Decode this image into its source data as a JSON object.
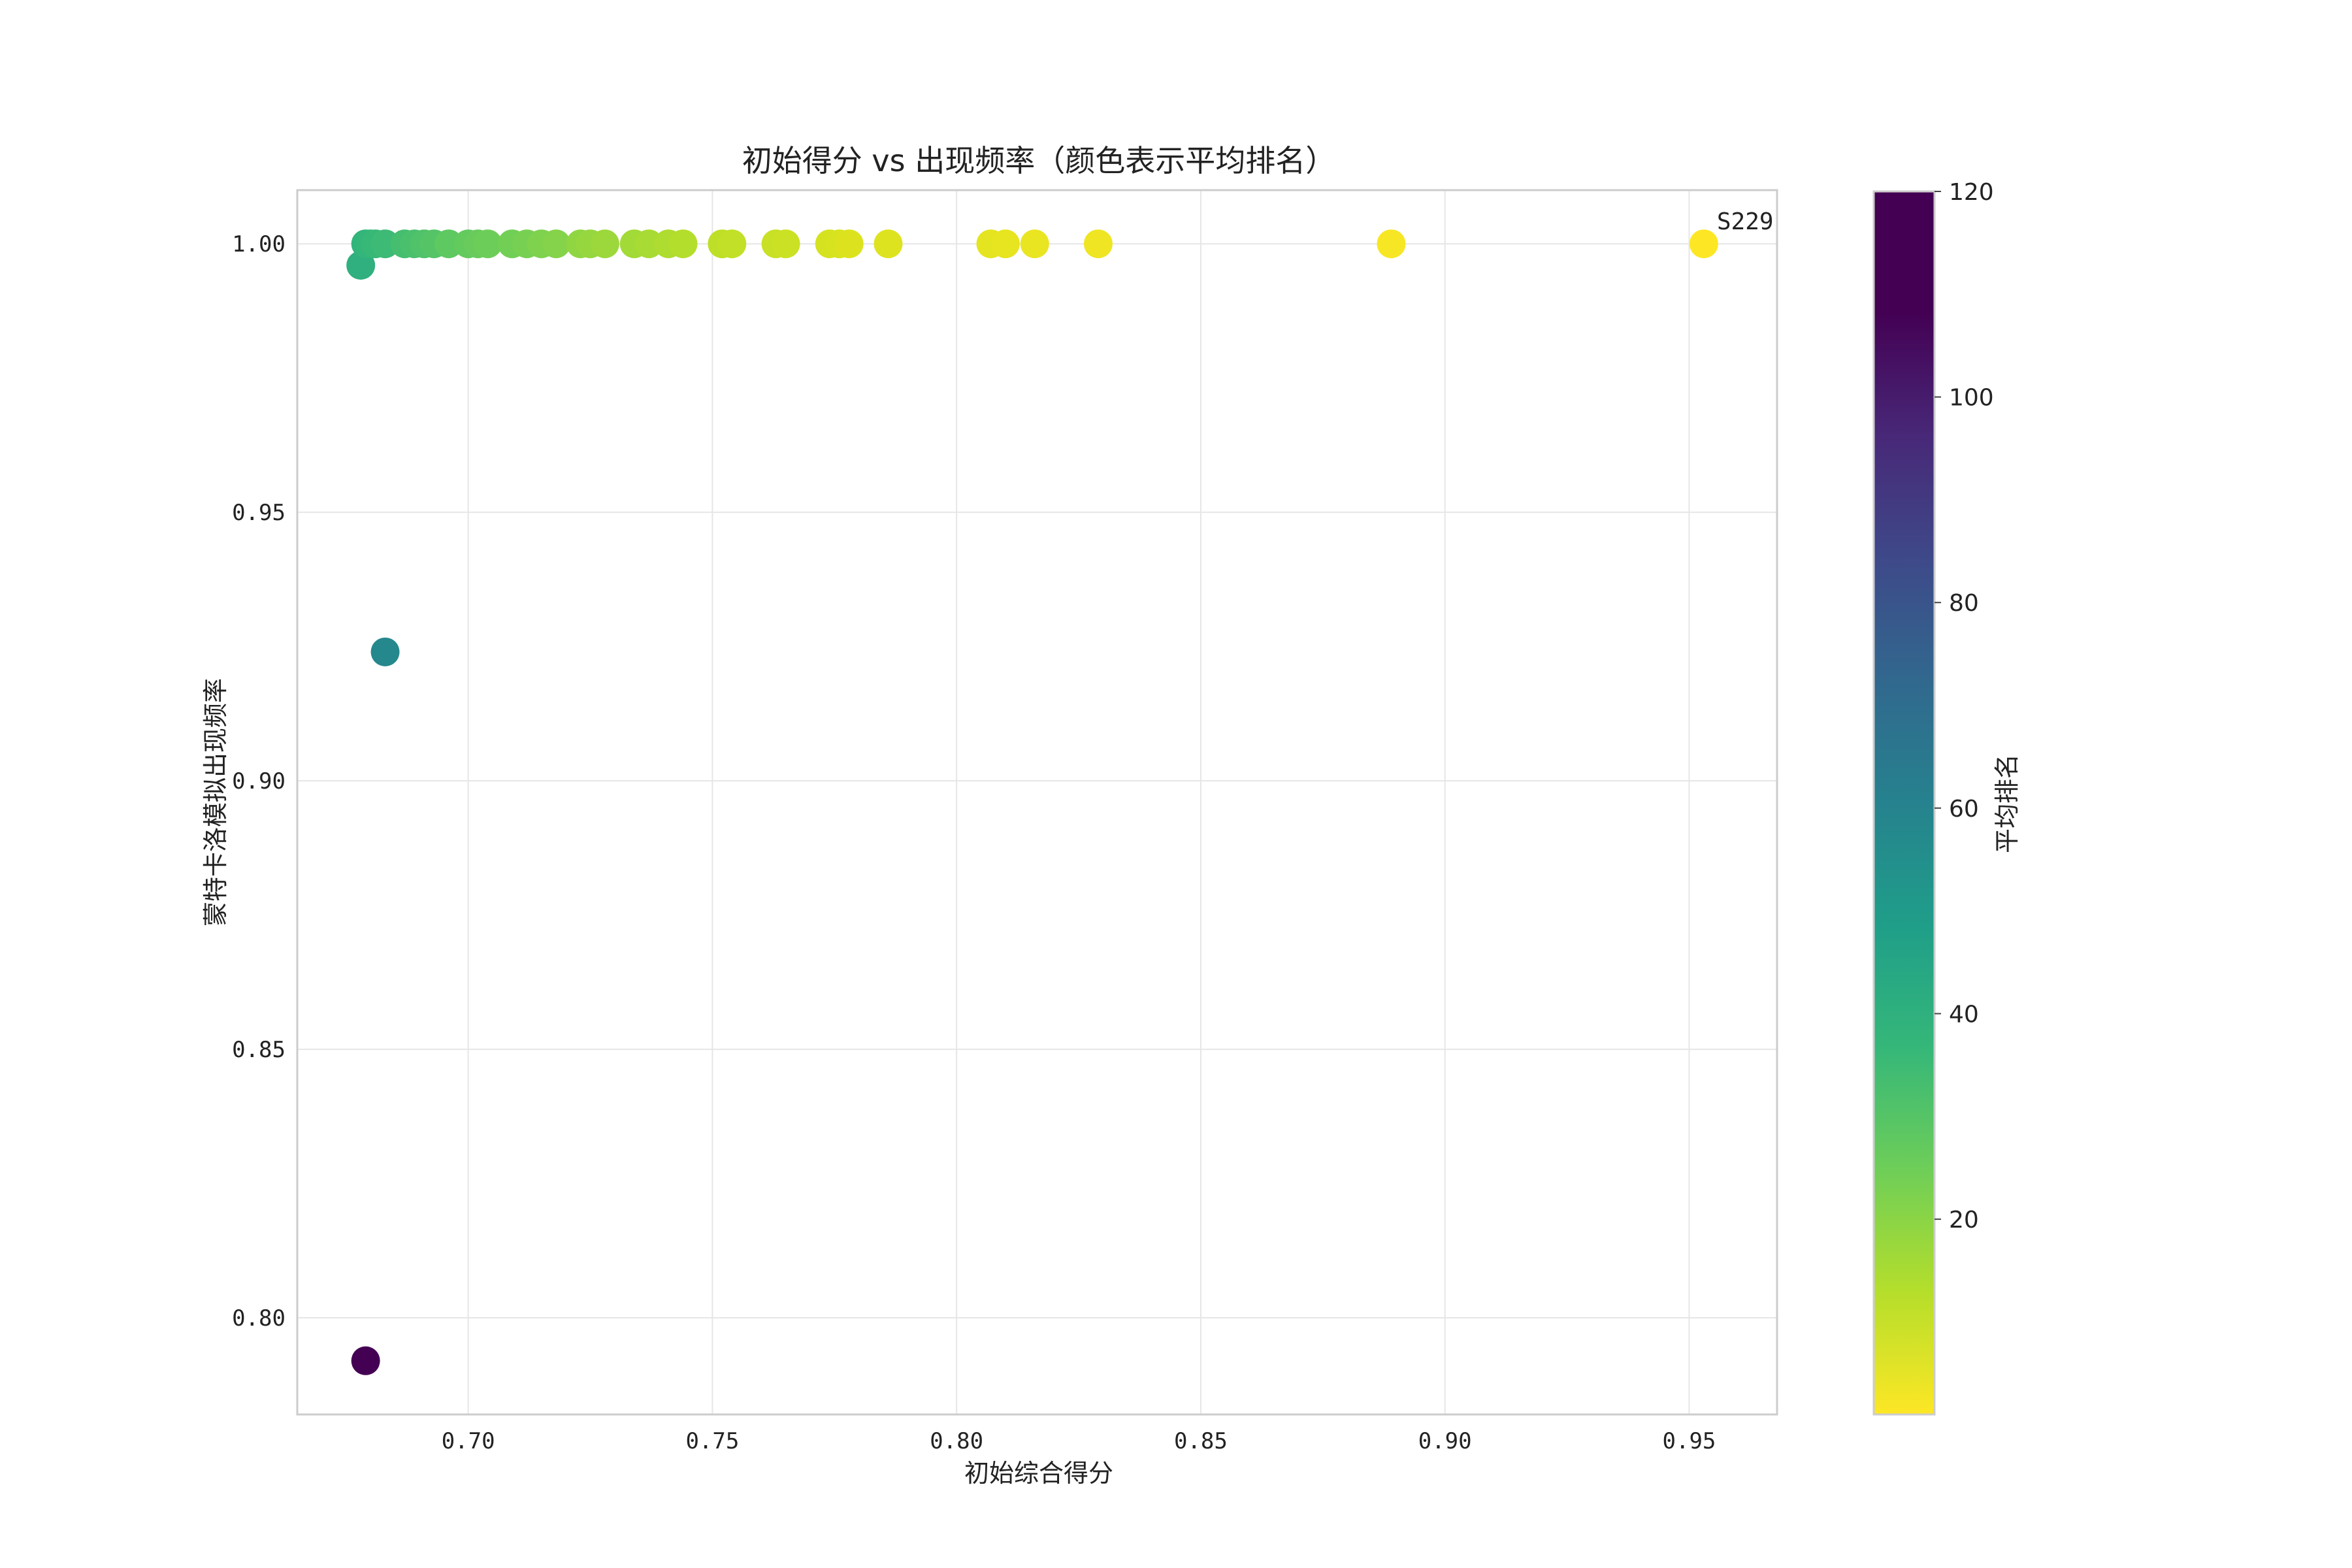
{
  "chart_data": {
    "type": "scatter",
    "title": "初始得分 vs 出现频率（颜色表示平均排名）",
    "xlabel": "初始综合得分",
    "ylabel": "蒙特卡洛模拟出现频率",
    "xlim": [
      0.665,
      0.968
    ],
    "ylim": [
      0.782,
      1.01
    ],
    "xticks": [
      "0.70",
      "0.75",
      "0.80",
      "0.85",
      "0.90",
      "0.95"
    ],
    "yticks": [
      "0.80",
      "0.85",
      "0.90",
      "0.95",
      "1.00"
    ],
    "grid": true,
    "colorbar": {
      "label": "平均排名",
      "range": [
        1,
        120
      ],
      "ticks": [
        "20",
        "40",
        "60",
        "80",
        "100",
        "120"
      ],
      "colormap": "viridis_r"
    },
    "annotations": [
      {
        "text": "S229",
        "x": 0.953,
        "y": 1.0
      }
    ],
    "points": [
      {
        "x": 0.679,
        "y": 0.792,
        "rank": 120
      },
      {
        "x": 0.683,
        "y": 0.924,
        "rank": 70
      },
      {
        "x": 0.678,
        "y": 0.996,
        "rank": 52
      },
      {
        "x": 0.679,
        "y": 1.0,
        "rank": 50
      },
      {
        "x": 0.68,
        "y": 1.0,
        "rank": 49
      },
      {
        "x": 0.681,
        "y": 1.0,
        "rank": 48
      },
      {
        "x": 0.683,
        "y": 1.0,
        "rank": 47
      },
      {
        "x": 0.687,
        "y": 1.0,
        "rank": 45
      },
      {
        "x": 0.689,
        "y": 1.0,
        "rank": 44
      },
      {
        "x": 0.691,
        "y": 1.0,
        "rank": 43
      },
      {
        "x": 0.693,
        "y": 1.0,
        "rank": 42
      },
      {
        "x": 0.696,
        "y": 1.0,
        "rank": 40
      },
      {
        "x": 0.7,
        "y": 1.0,
        "rank": 39
      },
      {
        "x": 0.702,
        "y": 1.0,
        "rank": 38
      },
      {
        "x": 0.704,
        "y": 1.0,
        "rank": 37
      },
      {
        "x": 0.709,
        "y": 1.0,
        "rank": 36
      },
      {
        "x": 0.712,
        "y": 1.0,
        "rank": 35
      },
      {
        "x": 0.715,
        "y": 1.0,
        "rank": 34
      },
      {
        "x": 0.718,
        "y": 1.0,
        "rank": 33
      },
      {
        "x": 0.723,
        "y": 1.0,
        "rank": 31
      },
      {
        "x": 0.725,
        "y": 1.0,
        "rank": 30
      },
      {
        "x": 0.728,
        "y": 1.0,
        "rank": 29
      },
      {
        "x": 0.734,
        "y": 1.0,
        "rank": 28
      },
      {
        "x": 0.737,
        "y": 1.0,
        "rank": 27
      },
      {
        "x": 0.741,
        "y": 1.0,
        "rank": 26
      },
      {
        "x": 0.744,
        "y": 1.0,
        "rank": 25
      },
      {
        "x": 0.752,
        "y": 1.0,
        "rank": 22
      },
      {
        "x": 0.754,
        "y": 1.0,
        "rank": 21
      },
      {
        "x": 0.763,
        "y": 1.0,
        "rank": 19
      },
      {
        "x": 0.765,
        "y": 1.0,
        "rank": 18
      },
      {
        "x": 0.774,
        "y": 1.0,
        "rank": 15
      },
      {
        "x": 0.776,
        "y": 1.0,
        "rank": 14
      },
      {
        "x": 0.778,
        "y": 1.0,
        "rank": 13
      },
      {
        "x": 0.786,
        "y": 1.0,
        "rank": 12
      },
      {
        "x": 0.807,
        "y": 1.0,
        "rank": 10
      },
      {
        "x": 0.81,
        "y": 1.0,
        "rank": 9
      },
      {
        "x": 0.816,
        "y": 1.0,
        "rank": 8
      },
      {
        "x": 0.829,
        "y": 1.0,
        "rank": 6
      },
      {
        "x": 0.889,
        "y": 1.0,
        "rank": 3
      },
      {
        "x": 0.953,
        "y": 1.0,
        "rank": 1
      }
    ]
  }
}
